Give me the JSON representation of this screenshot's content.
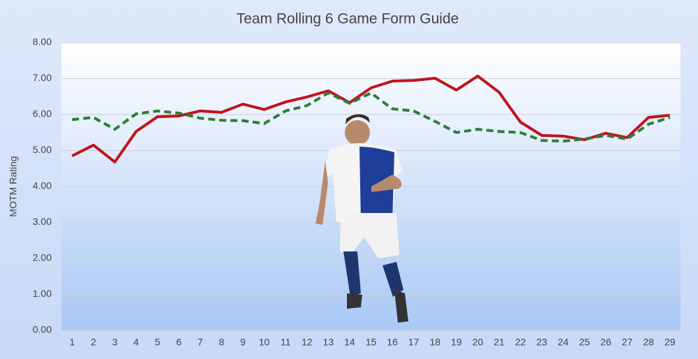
{
  "chart_data": {
    "type": "line",
    "title": "Team Rolling 6 Game Form Guide",
    "y_label": "MOTM Rating",
    "categories": [
      "1",
      "2",
      "3",
      "4",
      "5",
      "6",
      "7",
      "8",
      "9",
      "10",
      "11",
      "12",
      "13",
      "14",
      "15",
      "16",
      "17",
      "18",
      "19",
      "20",
      "21",
      "22",
      "23",
      "24",
      "25",
      "26",
      "27",
      "28",
      "29"
    ],
    "series": [
      {
        "color": "#c0141c",
        "style": "solid",
        "values": [
          4.85,
          5.15,
          4.68,
          5.53,
          5.94,
          5.96,
          6.1,
          6.06,
          6.29,
          6.14,
          6.35,
          6.49,
          6.66,
          6.33,
          6.74,
          6.93,
          6.95,
          7.01,
          6.68,
          7.07,
          6.62,
          5.79,
          5.42,
          5.4,
          5.3,
          5.48,
          5.36,
          5.92,
          5.98
        ]
      },
      {
        "color": "#2e7d3a",
        "style": "dashed",
        "values": [
          5.86,
          5.92,
          5.59,
          6.02,
          6.1,
          6.04,
          5.9,
          5.84,
          5.83,
          5.75,
          6.1,
          6.25,
          6.6,
          6.31,
          6.6,
          6.16,
          6.1,
          5.81,
          5.5,
          5.59,
          5.53,
          5.5,
          5.28,
          5.26,
          5.32,
          5.42,
          5.32,
          5.73,
          5.92
        ]
      }
    ],
    "ylim": [
      0,
      8
    ],
    "yticks": [
      {
        "value": 0,
        "label": "0.00"
      },
      {
        "value": 1,
        "label": "1.00"
      },
      {
        "value": 2,
        "label": "2.00"
      },
      {
        "value": 3,
        "label": "3.00"
      },
      {
        "value": 4,
        "label": "4.00"
      },
      {
        "value": 5,
        "label": "5.00"
      },
      {
        "value": 6,
        "label": "6.00"
      },
      {
        "value": 7,
        "label": "7.00"
      },
      {
        "value": 8,
        "label": "8.00"
      }
    ],
    "grid": true
  }
}
